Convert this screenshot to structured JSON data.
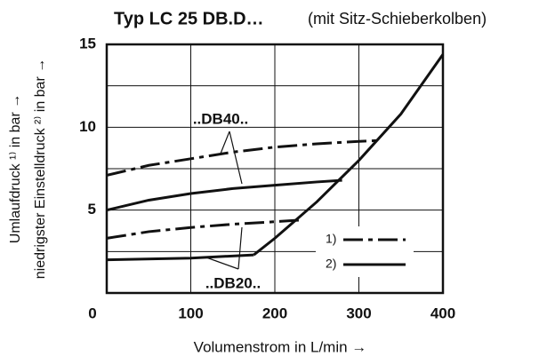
{
  "chart_data": {
    "type": "line",
    "title": "Typ LC 25 DB.D…",
    "subtitle": "(mit Sitz-Schieberkolben)",
    "x_label": "Volumenstrom in L/min →",
    "y_label": [
      "Umlaufdruck ¹⁾ in bar →",
      "niedrigster Einstelldruck ²⁾ in bar →"
    ],
    "xlim": [
      0,
      400
    ],
    "xticks": [
      0,
      100,
      200,
      300,
      400
    ],
    "ylim": [
      0,
      15
    ],
    "yticks": [
      5,
      10,
      15
    ],
    "ygrid": [
      2.5,
      5,
      7.5,
      10,
      12.5
    ],
    "grid": true,
    "color": "#111111",
    "series": [
      {
        "style": "dashdot",
        "x": [
          0,
          50,
          100,
          150,
          200,
          250,
          300,
          325
        ],
        "values": [
          7.1,
          7.7,
          8.1,
          8.5,
          8.8,
          9.0,
          9.15,
          9.2
        ]
      },
      {
        "style": "solid",
        "x": [
          0,
          50,
          100,
          150,
          200,
          250,
          280
        ],
        "values": [
          5.0,
          5.6,
          6.0,
          6.3,
          6.5,
          6.7,
          6.8
        ]
      },
      {
        "style": "dashdot",
        "x": [
          0,
          50,
          100,
          150,
          200,
          230
        ],
        "values": [
          3.3,
          3.7,
          3.95,
          4.15,
          4.3,
          4.4
        ]
      },
      {
        "style": "solid",
        "x": [
          0,
          100,
          175
        ],
        "values": [
          2.0,
          2.1,
          2.3
        ]
      },
      {
        "style": "solid",
        "x": [
          175,
          200,
          250,
          300,
          350,
          400
        ],
        "values": [
          2.3,
          3.3,
          5.5,
          8.0,
          10.8,
          14.4
        ]
      }
    ],
    "legend": [
      {
        "label": "1)",
        "style": "dashdot"
      },
      {
        "label": "2)",
        "style": "solid"
      }
    ],
    "annotations": [
      "..DB40..",
      "..DB20.."
    ]
  }
}
